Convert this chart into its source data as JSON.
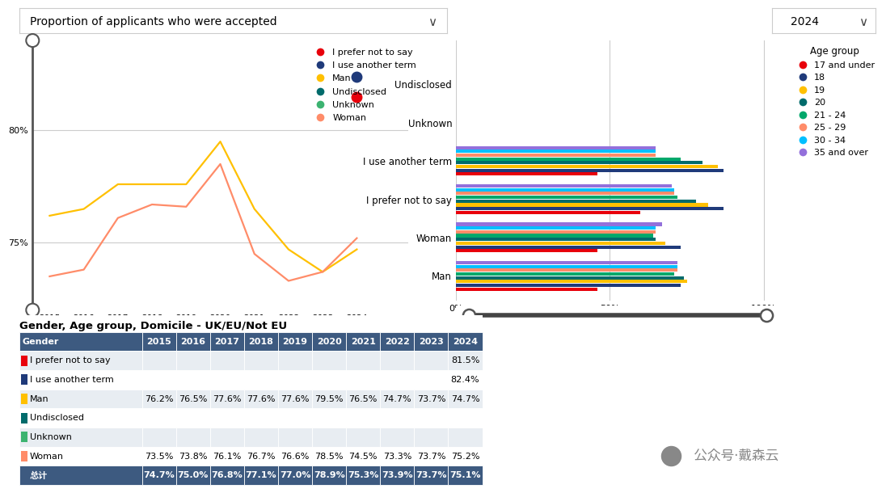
{
  "title": "Proportion of applicants who were accepted",
  "dropdown_year": "2024",
  "line_chart": {
    "years": [
      2015,
      2016,
      2017,
      2018,
      2019,
      2020,
      2021,
      2022,
      2023,
      2024
    ],
    "series": {
      "Man": {
        "values": [
          76.2,
          76.5,
          77.6,
          77.6,
          77.6,
          79.5,
          76.5,
          74.7,
          73.7,
          74.7
        ],
        "color": "#FFC000"
      },
      "Woman": {
        "values": [
          73.5,
          73.8,
          76.1,
          76.7,
          76.6,
          78.5,
          74.5,
          73.3,
          73.7,
          75.2
        ],
        "color": "#FF8C69"
      },
      "I prefer not to say": {
        "values": [
          null,
          null,
          null,
          null,
          null,
          null,
          null,
          null,
          null,
          81.5
        ],
        "color": "#E8000B"
      },
      "I use another term": {
        "values": [
          null,
          null,
          null,
          null,
          null,
          null,
          null,
          null,
          null,
          82.4
        ],
        "color": "#1F3A7A"
      }
    },
    "yticks": [
      75,
      80
    ],
    "ylim": [
      72,
      84
    ]
  },
  "bar_chart": {
    "cat_order": [
      "Man",
      "Woman",
      "I prefer not to say",
      "I use another term",
      "Unknown",
      "Undisclosed"
    ],
    "age_groups": [
      "17 and under",
      "18",
      "19",
      "20",
      "21 - 24",
      "25 - 29",
      "30 - 34",
      "35 and over"
    ],
    "age_colors": [
      "#E8000B",
      "#1F3A7A",
      "#FFC000",
      "#006B6B",
      "#00A86B",
      "#FF8C69",
      "#00BFFF",
      "#9370DB"
    ],
    "data": {
      "Man": [
        46,
        73,
        75,
        74,
        71,
        72,
        72,
        72
      ],
      "Woman": [
        46,
        73,
        68,
        65,
        64,
        65,
        65,
        67
      ],
      "I prefer not to say": [
        60,
        87,
        82,
        78,
        72,
        71,
        71,
        70
      ],
      "I use another term": [
        46,
        87,
        85,
        80,
        73,
        65,
        65,
        65
      ],
      "Unknown": [
        0,
        0,
        0,
        0,
        0,
        0,
        0,
        0
      ],
      "Undisclosed": [
        0,
        0,
        0,
        0,
        0,
        0,
        0,
        0
      ]
    }
  },
  "legend_line": [
    [
      "I prefer not to say",
      "#E8000B"
    ],
    [
      "I use another term",
      "#1F3A7A"
    ],
    [
      "Man",
      "#FFC000"
    ],
    [
      "Undisclosed",
      "#006B6B"
    ],
    [
      "Unknown",
      "#3CB371"
    ],
    [
      "Woman",
      "#FF8C69"
    ]
  ],
  "table": {
    "title": "Gender, Age group, Domicile - UK/EU/Not EU",
    "header": [
      "Gender",
      "2015",
      "2016",
      "2017",
      "2018",
      "2019",
      "2020",
      "2021",
      "2022",
      "2023",
      "2024"
    ],
    "rows": [
      [
        "I prefer not to say",
        "",
        "",
        "",
        "",
        "",
        "",
        "",
        "",
        "",
        "81.5%"
      ],
      [
        "I use another term",
        "",
        "",
        "",
        "",
        "",
        "",
        "",
        "",
        "",
        "82.4%"
      ],
      [
        "Man",
        "76.2%",
        "76.5%",
        "77.6%",
        "77.6%",
        "77.6%",
        "79.5%",
        "76.5%",
        "74.7%",
        "73.7%",
        "74.7%"
      ],
      [
        "Undisclosed",
        "",
        "",
        "",
        "",
        "",
        "",
        "",
        "",
        "",
        ""
      ],
      [
        "Unknown",
        "",
        "",
        "",
        "",
        "",
        "",
        "",
        "",
        "",
        ""
      ],
      [
        "Woman",
        "73.5%",
        "73.8%",
        "76.1%",
        "76.7%",
        "76.6%",
        "78.5%",
        "74.5%",
        "73.3%",
        "73.7%",
        "75.2%"
      ],
      [
        "总计",
        "74.7%",
        "75.0%",
        "76.8%",
        "77.1%",
        "77.0%",
        "78.9%",
        "75.3%",
        "73.9%",
        "73.7%",
        "75.1%"
      ]
    ],
    "icon_colors": {
      "I prefer not to say": "#E8000B",
      "I use another term": "#1F3A7A",
      "Man": "#FFC000",
      "Undisclosed": "#006B6B",
      "Unknown": "#3CB371",
      "Woman": "#FF8C69"
    },
    "header_bg": "#3D5A80",
    "header_fg": "#FFFFFF",
    "alt_bg": "#E8EDF2",
    "row_bg": "#FFFFFF",
    "total_bg": "#3D5A80",
    "total_fg": "#FFFFFF"
  },
  "watermark": "公众号·戴森云"
}
